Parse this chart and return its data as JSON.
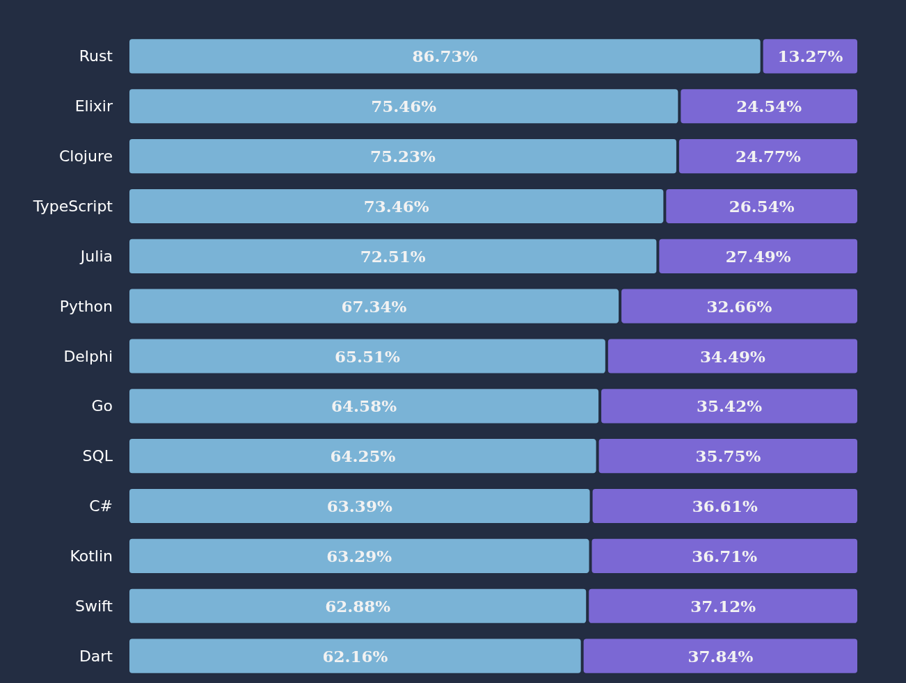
{
  "chart_data": {
    "type": "bar",
    "orientation": "horizontal",
    "stacked": true,
    "tick_labels": "y",
    "xlim": [
      0,
      100
    ],
    "categories": [
      "Rust",
      "Elixir",
      "Clojure",
      "TypeScript",
      "Julia",
      "Python",
      "Delphi",
      "Go",
      "SQL",
      "C#",
      "Kotlin",
      "Swift",
      "Dart"
    ],
    "series": [
      {
        "color": "#7ab3d6",
        "values": [
          86.73,
          75.46,
          75.23,
          73.46,
          72.51,
          67.34,
          65.51,
          64.58,
          64.25,
          63.39,
          63.29,
          62.88,
          62.16
        ],
        "value_labels": [
          "86.73%",
          "75.46%",
          "75.23%",
          "73.46%",
          "72.51%",
          "67.34%",
          "65.51%",
          "64.58%",
          "64.25%",
          "63.39%",
          "63.29%",
          "62.88%",
          "62.16%"
        ]
      },
      {
        "color": "#7b68d4",
        "values": [
          13.27,
          24.54,
          24.77,
          26.54,
          27.49,
          32.66,
          34.49,
          35.42,
          35.75,
          36.61,
          36.71,
          37.12,
          37.84
        ],
        "value_labels": [
          "13.27%",
          "24.54%",
          "24.77%",
          "26.54%",
          "27.49%",
          "32.66%",
          "34.49%",
          "35.42%",
          "35.75%",
          "36.61%",
          "36.71%",
          "37.12%",
          "37.84%"
        ]
      }
    ]
  }
}
